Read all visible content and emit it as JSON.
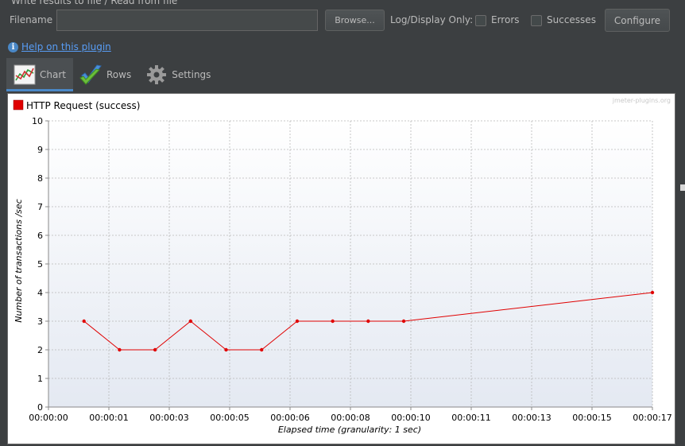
{
  "panel": {
    "section_title": "Write results to file / Read from file",
    "filename_label": "Filename",
    "filename_value": "",
    "browse_label": "Browse...",
    "log_display_label": "Log/Display Only:",
    "errors_label": "Errors",
    "successes_label": "Successes",
    "configure_label": "Configure"
  },
  "help": {
    "link_text": "Help on this plugin",
    "icon": "info-icon"
  },
  "tabs": [
    {
      "label": "Chart",
      "icon": "line-chart-icon",
      "active": true
    },
    {
      "label": "Rows",
      "icon": "checkmark-icon",
      "active": false
    },
    {
      "label": "Settings",
      "icon": "gear-icon",
      "active": false
    }
  ],
  "chart_data": {
    "type": "line",
    "watermark": "jmeter-plugins.org",
    "xlabel": "Elapsed time (granularity: 1 sec)",
    "ylabel": "Number of transactions /sec",
    "ylim": [
      0,
      10
    ],
    "xlim": [
      0,
      17
    ],
    "grid": true,
    "legend_placement": "top-left",
    "x_ticks": [
      {
        "t": 0,
        "label": "00:00:00"
      },
      {
        "t": 1.7,
        "label": "00:00:01"
      },
      {
        "t": 3.4,
        "label": "00:00:03"
      },
      {
        "t": 5.1,
        "label": "00:00:05"
      },
      {
        "t": 6.8,
        "label": "00:00:06"
      },
      {
        "t": 8.5,
        "label": "00:00:08"
      },
      {
        "t": 10.2,
        "label": "00:00:10"
      },
      {
        "t": 11.9,
        "label": "00:00:11"
      },
      {
        "t": 13.6,
        "label": "00:00:13"
      },
      {
        "t": 15.3,
        "label": "00:00:15"
      },
      {
        "t": 17,
        "label": "00:00:17"
      }
    ],
    "y_ticks": [
      0,
      1,
      2,
      3,
      4,
      5,
      6,
      7,
      8,
      9,
      10
    ],
    "series": [
      {
        "name": "HTTP Request (success)",
        "color": "#e00000",
        "points": [
          {
            "x": 1.0,
            "y": 3
          },
          {
            "x": 2.0,
            "y": 2
          },
          {
            "x": 3.0,
            "y": 2
          },
          {
            "x": 4.0,
            "y": 3
          },
          {
            "x": 5.0,
            "y": 2
          },
          {
            "x": 6.0,
            "y": 2
          },
          {
            "x": 7.0,
            "y": 3
          },
          {
            "x": 8.0,
            "y": 3
          },
          {
            "x": 9.0,
            "y": 3
          },
          {
            "x": 10.0,
            "y": 3
          },
          {
            "x": 17.0,
            "y": 4
          }
        ]
      }
    ]
  }
}
